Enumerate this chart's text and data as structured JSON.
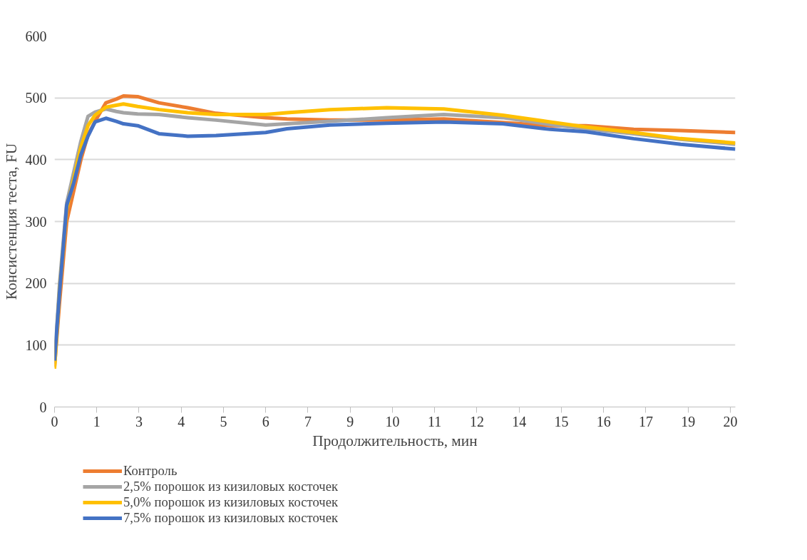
{
  "chart_data": {
    "type": "line",
    "xlabel": "Продолжительность, мин",
    "ylabel": "Консистенция теста, FU",
    "x": [
      0,
      0.15,
      0.36,
      0.57,
      0.78,
      0.99,
      1.2,
      1.52,
      1.83,
      2.04,
      2.46,
      3.09,
      3.94,
      4.78,
      6.25,
      6.88,
      8.15,
      9.83,
      11.52,
      13.26,
      14.67,
      15.73,
      17.14,
      18.53,
      20.15
    ],
    "series": [
      {
        "name": "Контроль",
        "color": "#ed7d31",
        "values": [
          65,
          170,
          300,
          350,
          400,
          440,
          462,
          492,
          498,
          503,
          502,
          492,
          484,
          475,
          468,
          466,
          464,
          464,
          466,
          460,
          455,
          455,
          449,
          447,
          444
        ]
      },
      {
        "name": "2,5% порошок из кизиловых косточек",
        "color": "#a5a5a5",
        "values": [
          70,
          200,
          330,
          380,
          430,
          470,
          477,
          482,
          478,
          476,
          474,
          473,
          468,
          464,
          456,
          458,
          462,
          468,
          473,
          468,
          457,
          450,
          442,
          433,
          425
        ]
      },
      {
        "name": "5,0% порошок из кизиловых косточек",
        "color": "#ffc000",
        "values": [
          62,
          190,
          320,
          370,
          420,
          455,
          472,
          485,
          488,
          490,
          486,
          481,
          476,
          473,
          473,
          476,
          481,
          484,
          482,
          472,
          461,
          453,
          444,
          434,
          427
        ]
      },
      {
        "name": "7,5% порошок из кизиловых косточек",
        "color": "#4472c4",
        "values": [
          75,
          187,
          326,
          363,
          408,
          438,
          461,
          467,
          462,
          458,
          455,
          442,
          438,
          439,
          444,
          450,
          456,
          459,
          461,
          458,
          449,
          445,
          434,
          425,
          417
        ]
      }
    ],
    "xlim": [
      0,
      20.15
    ],
    "xticks": [
      0,
      {
        "value": 1.25,
        "label": "1"
      },
      {
        "value": 2.5,
        "label": "3"
      },
      {
        "value": 3.75,
        "label": "4"
      },
      5,
      {
        "value": 6.25,
        "label": "6"
      },
      {
        "value": 7.5,
        "label": "7"
      },
      {
        "value": 8.75,
        "label": "9"
      },
      10,
      {
        "value": 11.25,
        "label": "11"
      },
      {
        "value": 12.5,
        "label": "12"
      },
      {
        "value": 13.75,
        "label": "14"
      },
      15,
      {
        "value": 16.25,
        "label": "16"
      },
      {
        "value": 17.5,
        "label": "17"
      },
      {
        "value": 18.75,
        "label": "19"
      },
      20
    ],
    "ylim": [
      0,
      600
    ],
    "yticks": [
      0,
      100,
      200,
      300,
      400,
      500,
      600
    ],
    "grid": "y",
    "legend": "bottom left",
    "line_style": "solid",
    "marker": "none"
  }
}
